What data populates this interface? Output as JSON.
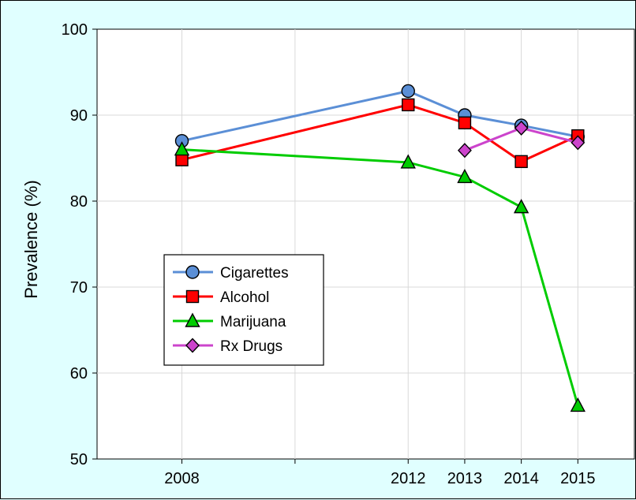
{
  "chart_data": {
    "type": "line",
    "title": "",
    "xlabel": "",
    "ylabel": "Prevalence (%)",
    "x": [
      2008,
      2012,
      2013,
      2014,
      2015
    ],
    "x_tick_labels": [
      "2008",
      "2012",
      "2013",
      "2014",
      "2015"
    ],
    "xlim": [
      2006.5,
      2016
    ],
    "ylim": [
      50,
      100
    ],
    "y_ticks": [
      50,
      60,
      70,
      80,
      90,
      100
    ],
    "y_tick_labels": [
      "50",
      "60",
      "70",
      "80",
      "90",
      "100"
    ],
    "grid": true,
    "legend_position": "center-left",
    "series": [
      {
        "name": "Cigarettes",
        "color": "#5b8fd6",
        "marker": "circle",
        "values": [
          87.0,
          92.8,
          90.0,
          88.8,
          87.5
        ]
      },
      {
        "name": "Alcohol",
        "color": "#ff0000",
        "marker": "square",
        "values": [
          84.8,
          91.2,
          89.1,
          84.6,
          87.6
        ]
      },
      {
        "name": "Marijuana",
        "color": "#00cc00",
        "marker": "triangle",
        "values": [
          86.0,
          84.5,
          82.8,
          79.3,
          56.2
        ]
      },
      {
        "name": "Rx Drugs",
        "color": "#cc44cc",
        "marker": "diamond",
        "values": [
          null,
          null,
          85.9,
          88.5,
          86.8
        ]
      }
    ]
  }
}
